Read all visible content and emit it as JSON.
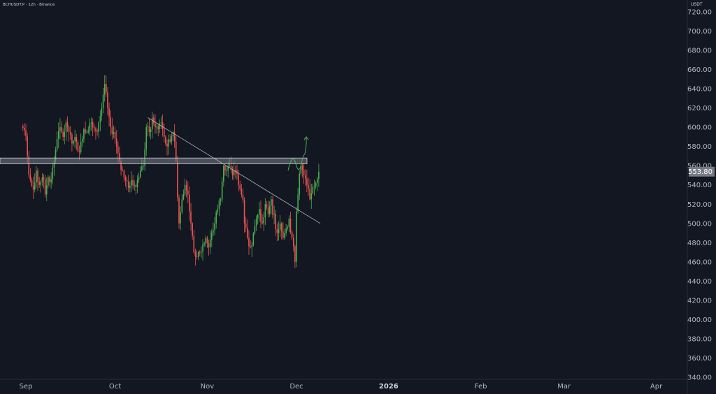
{
  "header": {
    "symbol_line": "BCHUSDT.P · 12h · Binance"
  },
  "price_scale": {
    "unit": "USDT",
    "ticks": [
      "720.00",
      "700.00",
      "680.00",
      "660.00",
      "640.00",
      "620.00",
      "600.00",
      "580.00",
      "560.00",
      "540.00",
      "520.00",
      "500.00",
      "480.00",
      "460.00",
      "440.00",
      "420.00",
      "400.00",
      "380.00",
      "360.00",
      "340.00"
    ],
    "last_price": "553.80"
  },
  "time_scale": {
    "labels": [
      "Sep",
      "Oct",
      "Nov",
      "Dec",
      "2026",
      "Feb",
      "Mar",
      "Apr"
    ]
  },
  "colors": {
    "background": "#131722",
    "up": "#26a69a",
    "up_bright": "#4caf50",
    "down": "#ef5350",
    "axis_text": "#b2b5be",
    "zone_fill": "#787b86",
    "projection": "#4caf50"
  },
  "chart_data": {
    "type": "candlestick",
    "title": "BCHUSDT.P · 12h · Binance",
    "timeframe": "12h",
    "exchange": "Binance",
    "ylim": [
      340,
      725
    ],
    "y_unit": "USDT",
    "last_price": 553.8,
    "x_labels": [
      "Sep",
      "Oct",
      "Nov",
      "Dec",
      "2026",
      "Feb",
      "Mar",
      "Apr"
    ],
    "candles_close_series": [
      {
        "date": "2025-08-31",
        "close": 597
      },
      {
        "date": "2025-09-01",
        "close": 570
      },
      {
        "date": "2025-09-02",
        "close": 545
      },
      {
        "date": "2025-09-03",
        "close": 535
      },
      {
        "date": "2025-09-04",
        "close": 555
      },
      {
        "date": "2025-09-05",
        "close": 540
      },
      {
        "date": "2025-09-06",
        "close": 548
      },
      {
        "date": "2025-09-07",
        "close": 530
      },
      {
        "date": "2025-09-08",
        "close": 548
      },
      {
        "date": "2025-09-09",
        "close": 546
      },
      {
        "date": "2025-09-10",
        "close": 565
      },
      {
        "date": "2025-09-11",
        "close": 588
      },
      {
        "date": "2025-09-12",
        "close": 600
      },
      {
        "date": "2025-09-13",
        "close": 590
      },
      {
        "date": "2025-09-14",
        "close": 605
      },
      {
        "date": "2025-09-15",
        "close": 595
      },
      {
        "date": "2025-09-16",
        "close": 583
      },
      {
        "date": "2025-09-17",
        "close": 590
      },
      {
        "date": "2025-09-18",
        "close": 575
      },
      {
        "date": "2025-09-19",
        "close": 585
      },
      {
        "date": "2025-09-20",
        "close": 598
      },
      {
        "date": "2025-09-21",
        "close": 595
      },
      {
        "date": "2025-09-22",
        "close": 604
      },
      {
        "date": "2025-09-23",
        "close": 600
      },
      {
        "date": "2025-09-24",
        "close": 596
      },
      {
        "date": "2025-09-25",
        "close": 605
      },
      {
        "date": "2025-09-26",
        "close": 620
      },
      {
        "date": "2025-09-27",
        "close": 645
      },
      {
        "date": "2025-09-28",
        "close": 620
      },
      {
        "date": "2025-09-29",
        "close": 600
      },
      {
        "date": "2025-09-30",
        "close": 595
      },
      {
        "date": "2025-10-01",
        "close": 580
      },
      {
        "date": "2025-10-02",
        "close": 565
      },
      {
        "date": "2025-10-03",
        "close": 555
      },
      {
        "date": "2025-10-04",
        "close": 545
      },
      {
        "date": "2025-10-05",
        "close": 537
      },
      {
        "date": "2025-10-06",
        "close": 545
      },
      {
        "date": "2025-10-07",
        "close": 540
      },
      {
        "date": "2025-10-08",
        "close": 545
      },
      {
        "date": "2025-10-09",
        "close": 555
      },
      {
        "date": "2025-10-10",
        "close": 560
      },
      {
        "date": "2025-10-11",
        "close": 600
      },
      {
        "date": "2025-10-12",
        "close": 595
      },
      {
        "date": "2025-10-13",
        "close": 610
      },
      {
        "date": "2025-10-14",
        "close": 600
      },
      {
        "date": "2025-10-15",
        "close": 598
      },
      {
        "date": "2025-10-16",
        "close": 605
      },
      {
        "date": "2025-10-17",
        "close": 590
      },
      {
        "date": "2025-10-18",
        "close": 580
      },
      {
        "date": "2025-10-19",
        "close": 585
      },
      {
        "date": "2025-10-20",
        "close": 595
      },
      {
        "date": "2025-10-21",
        "close": 565
      },
      {
        "date": "2025-10-22",
        "close": 500
      },
      {
        "date": "2025-10-23",
        "close": 525
      },
      {
        "date": "2025-10-24",
        "close": 540
      },
      {
        "date": "2025-10-25",
        "close": 530
      },
      {
        "date": "2025-10-26",
        "close": 500
      },
      {
        "date": "2025-10-27",
        "close": 470
      },
      {
        "date": "2025-10-28",
        "close": 465
      },
      {
        "date": "2025-10-29",
        "close": 470
      },
      {
        "date": "2025-10-30",
        "close": 478
      },
      {
        "date": "2025-10-31",
        "close": 485
      },
      {
        "date": "2025-11-01",
        "close": 475
      },
      {
        "date": "2025-11-02",
        "close": 490
      },
      {
        "date": "2025-11-03",
        "close": 500
      },
      {
        "date": "2025-11-04",
        "close": 515
      },
      {
        "date": "2025-11-05",
        "close": 525
      },
      {
        "date": "2025-11-06",
        "close": 560
      },
      {
        "date": "2025-11-07",
        "close": 555
      },
      {
        "date": "2025-11-08",
        "close": 560
      },
      {
        "date": "2025-11-09",
        "close": 550
      },
      {
        "date": "2025-11-10",
        "close": 555
      },
      {
        "date": "2025-11-11",
        "close": 540
      },
      {
        "date": "2025-11-12",
        "close": 530
      },
      {
        "date": "2025-11-13",
        "close": 500
      },
      {
        "date": "2025-11-14",
        "close": 485
      },
      {
        "date": "2025-11-15",
        "close": 475
      },
      {
        "date": "2025-11-16",
        "close": 490
      },
      {
        "date": "2025-11-17",
        "close": 505
      },
      {
        "date": "2025-11-18",
        "close": 515
      },
      {
        "date": "2025-11-19",
        "close": 500
      },
      {
        "date": "2025-11-20",
        "close": 520
      },
      {
        "date": "2025-11-21",
        "close": 510
      },
      {
        "date": "2025-11-22",
        "close": 525
      },
      {
        "date": "2025-11-23",
        "close": 510
      },
      {
        "date": "2025-11-24",
        "close": 490
      },
      {
        "date": "2025-11-25",
        "close": 500
      },
      {
        "date": "2025-11-26",
        "close": 485
      },
      {
        "date": "2025-11-27",
        "close": 495
      },
      {
        "date": "2025-11-28",
        "close": 505
      },
      {
        "date": "2025-11-29",
        "close": 485
      },
      {
        "date": "2025-11-30",
        "close": 460
      },
      {
        "date": "2025-12-01",
        "close": 530
      },
      {
        "date": "2025-12-02",
        "close": 560
      },
      {
        "date": "2025-12-03",
        "close": 550
      },
      {
        "date": "2025-12-04",
        "close": 540
      },
      {
        "date": "2025-12-05",
        "close": 525
      },
      {
        "date": "2025-12-06",
        "close": 538
      },
      {
        "date": "2025-12-07",
        "close": 542
      },
      {
        "date": "2025-12-08",
        "close": 553.8
      }
    ],
    "annotations": [
      {
        "kind": "resistance-zone",
        "low": 562,
        "high": 568
      },
      {
        "kind": "trendline",
        "from": {
          "date": "2025-10-12",
          "price": 610
        },
        "to": {
          "date": "2025-12-09",
          "price": 500
        }
      },
      {
        "kind": "projection",
        "direction": "up",
        "from_price": 555,
        "to_price": 590
      }
    ]
  }
}
